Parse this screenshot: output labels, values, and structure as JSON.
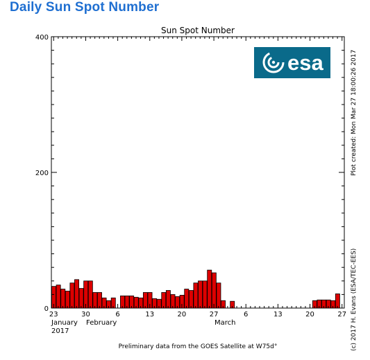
{
  "page": {
    "heading": "Daily Sun Spot Number"
  },
  "chart_data": {
    "type": "bar",
    "title": "Sun Spot Number",
    "ylim": [
      0,
      400
    ],
    "y_ticks": [
      0,
      200,
      400
    ],
    "x_tick_labels": [
      "23",
      "30",
      "6",
      "13",
      "20",
      "27",
      "6",
      "13",
      "20",
      "27"
    ],
    "month_labels": [
      "January",
      "February",
      "March"
    ],
    "year_label": "2017",
    "x_start_date": "2017-01-23",
    "x_end_date": "2017-03-28",
    "bar_color": "#dd0000",
    "x": [
      "2017-01-23",
      "2017-01-24",
      "2017-01-25",
      "2017-01-26",
      "2017-01-27",
      "2017-01-28",
      "2017-01-29",
      "2017-01-30",
      "2017-01-31",
      "2017-02-01",
      "2017-02-02",
      "2017-02-03",
      "2017-02-04",
      "2017-02-05",
      "2017-02-07",
      "2017-02-08",
      "2017-02-09",
      "2017-02-10",
      "2017-02-11",
      "2017-02-12",
      "2017-02-13",
      "2017-02-14",
      "2017-02-15",
      "2017-02-16",
      "2017-02-17",
      "2017-02-18",
      "2017-02-19",
      "2017-02-20",
      "2017-02-21",
      "2017-02-22",
      "2017-02-23",
      "2017-02-24",
      "2017-02-25",
      "2017-02-26",
      "2017-02-27",
      "2017-02-28",
      "2017-03-01",
      "2017-03-03",
      "2017-03-21",
      "2017-03-22",
      "2017-03-23",
      "2017-03-24",
      "2017-03-25",
      "2017-03-26"
    ],
    "values": [
      32,
      34,
      28,
      25,
      37,
      42,
      29,
      40,
      40,
      23,
      23,
      15,
      11,
      15,
      18,
      18,
      18,
      16,
      15,
      23,
      23,
      14,
      13,
      23,
      26,
      20,
      17,
      19,
      28,
      26,
      37,
      40,
      40,
      56,
      52,
      37,
      11,
      10,
      11,
      12,
      12,
      12,
      11,
      21
    ]
  },
  "logo": {
    "text": "esa"
  },
  "side_text": {
    "plot_created": "Plot created: Mon Mar 27 18:00:26 2017",
    "credit": "(c) 2017 H. Evans (ESA/TEC-EES)"
  },
  "footer": {
    "note": "Preliminary data from the GOES Satellite at W75d°"
  }
}
